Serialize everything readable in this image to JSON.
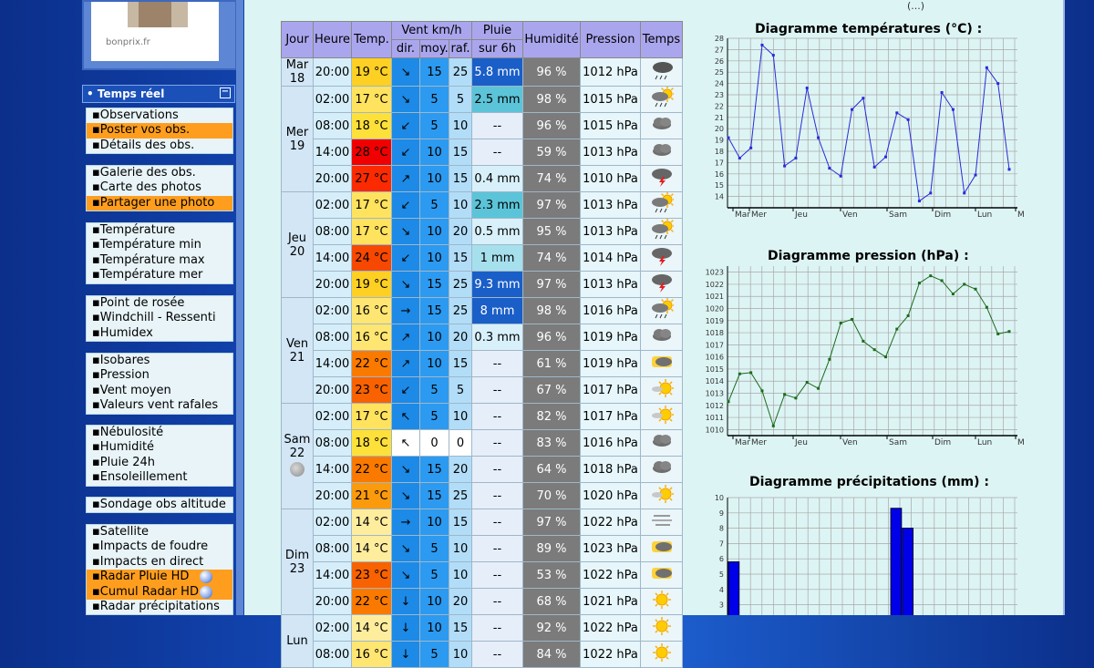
{
  "ad": {
    "label": "bonprix.fr"
  },
  "top_partial": "(...)",
  "menu": {
    "title": "• Temps réel",
    "groups": [
      [
        {
          "label": "Observations"
        },
        {
          "label": "Poster vos obs.",
          "hl": true
        },
        {
          "label": "Détails des obs."
        }
      ],
      [
        {
          "label": "Galerie des obs."
        },
        {
          "label": "Carte des photos"
        },
        {
          "label": "Partager une photo",
          "hl": true
        }
      ],
      [
        {
          "label": "Température"
        },
        {
          "label": "Température min"
        },
        {
          "label": "Température max"
        },
        {
          "label": "Température mer"
        }
      ],
      [
        {
          "label": "Point de rosée"
        },
        {
          "label": "Windchill - Ressenti"
        },
        {
          "label": "Humidex"
        }
      ],
      [
        {
          "label": "Isobares"
        },
        {
          "label": "Pression"
        },
        {
          "label": "Vent moyen"
        },
        {
          "label": "Valeurs vent rafales"
        }
      ],
      [
        {
          "label": "Nébulosité"
        },
        {
          "label": "Humidité"
        },
        {
          "label": "Pluie 24h"
        },
        {
          "label": "Ensoleillement"
        }
      ],
      [
        {
          "label": "Sondage obs altitude"
        }
      ],
      [
        {
          "label": "Satellite"
        },
        {
          "label": "Impacts de foudre"
        },
        {
          "label": "Impacts en direct"
        },
        {
          "label": "Radar Pluie HD",
          "hl": true,
          "ball": true
        },
        {
          "label": "Cumul Radar HD",
          "hl": true,
          "ball": true
        },
        {
          "label": "Radar précipitations"
        }
      ]
    ]
  },
  "table": {
    "headers": {
      "day": "Jour",
      "hour": "Heure",
      "temp": "Temp.",
      "wind": "Vent km/h",
      "dir": "dir.",
      "avg": "moy.",
      "gust": "raf.",
      "rain1": "Pluie",
      "rain2": "sur 6h",
      "hum": "Humidité",
      "press": "Pression",
      "weather": "Temps"
    },
    "days": [
      {
        "day": "Mar",
        "date": "18",
        "rows": [
          {
            "h": "20:00",
            "t": "19 °C",
            "tc": "#fdd023",
            "dir": "↘",
            "moy": "15",
            "raf": "25",
            "pl": "5.8 mm",
            "plc": "#1a5ec8",
            "hu": "96 %",
            "pr": "1012 hPa",
            "ic": "storm"
          }
        ]
      },
      {
        "day": "Mer",
        "date": "19",
        "rows": [
          {
            "h": "02:00",
            "t": "17 °C",
            "tc": "#ffe35e",
            "dir": "↘",
            "moy": "5",
            "raf": "5",
            "pl": "2.5 mm",
            "plc": "#5cc4d8",
            "hu": "98 %",
            "pr": "1015 hPa",
            "ic": "rainsun"
          },
          {
            "h": "08:00",
            "t": "18 °C",
            "tc": "#fde03a",
            "dir": "↙",
            "moy": "5",
            "raf": "10",
            "pl": "--",
            "hu": "96 %",
            "pr": "1015 hPa",
            "ic": "cloud"
          },
          {
            "h": "14:00",
            "t": "28 °C",
            "tc": "#f00000",
            "dir": "↙",
            "moy": "10",
            "raf": "15",
            "pl": "--",
            "hu": "59 %",
            "pr": "1013 hPa",
            "ic": "cloud"
          },
          {
            "h": "20:00",
            "t": "27 °C",
            "tc": "#fb2a00",
            "dir": "↗",
            "moy": "10",
            "raf": "15",
            "pl": "0.4 mm",
            "plc": "#d8f0fa",
            "hu": "74 %",
            "pr": "1010 hPa",
            "ic": "thunder"
          }
        ]
      },
      {
        "day": "Jeu",
        "date": "20",
        "rows": [
          {
            "h": "02:00",
            "t": "17 °C",
            "tc": "#ffe35e",
            "dir": "↙",
            "moy": "5",
            "raf": "10",
            "pl": "2.3 mm",
            "plc": "#5cc4d8",
            "hu": "97 %",
            "pr": "1013 hPa",
            "ic": "rainsun"
          },
          {
            "h": "08:00",
            "t": "17 °C",
            "tc": "#ffe35e",
            "dir": "↘",
            "moy": "10",
            "raf": "20",
            "pl": "0.5 mm",
            "plc": "#d8f0fa",
            "hu": "95 %",
            "pr": "1013 hPa",
            "ic": "rainsun"
          },
          {
            "h": "14:00",
            "t": "24 °C",
            "tc": "#f64800",
            "dir": "↙",
            "moy": "10",
            "raf": "15",
            "pl": "1 mm",
            "plc": "#a6e0ec",
            "hu": "74 %",
            "pr": "1014 hPa",
            "ic": "thunder"
          },
          {
            "h": "20:00",
            "t": "19 °C",
            "tc": "#fdd023",
            "dir": "↘",
            "moy": "15",
            "raf": "25",
            "pl": "9.3 mm",
            "plc": "#1a5ec8",
            "hu": "97 %",
            "pr": "1013 hPa",
            "ic": "thunder"
          }
        ]
      },
      {
        "day": "Ven",
        "date": "21",
        "rows": [
          {
            "h": "02:00",
            "t": "16 °C",
            "tc": "#ffe672",
            "dir": "→",
            "moy": "15",
            "raf": "25",
            "pl": "8 mm",
            "plc": "#1a5ec8",
            "hu": "98 %",
            "pr": "1016 hPa",
            "ic": "rainsun"
          },
          {
            "h": "08:00",
            "t": "16 °C",
            "tc": "#ffe672",
            "dir": "↗",
            "moy": "10",
            "raf": "20",
            "pl": "0.3 mm",
            "plc": "#d8f0fa",
            "hu": "96 %",
            "pr": "1019 hPa",
            "ic": "cloud"
          },
          {
            "h": "14:00",
            "t": "22 °C",
            "tc": "#fa7a00",
            "dir": "↗",
            "moy": "10",
            "raf": "15",
            "pl": "--",
            "hu": "61 %",
            "pr": "1019 hPa",
            "ic": "sunclouds"
          },
          {
            "h": "20:00",
            "t": "23 °C",
            "tc": "#f86200",
            "dir": "↙",
            "moy": "5",
            "raf": "5",
            "pl": "--",
            "hu": "67 %",
            "pr": "1017 hPa",
            "ic": "sunsmall"
          }
        ]
      },
      {
        "day": "Sam",
        "date": "22",
        "moon": true,
        "rows": [
          {
            "h": "02:00",
            "t": "17 °C",
            "tc": "#ffe35e",
            "dir": "↖",
            "moy": "5",
            "raf": "10",
            "pl": "--",
            "hu": "82 %",
            "pr": "1017 hPa",
            "ic": "sunsmall"
          },
          {
            "h": "08:00",
            "t": "18 °C",
            "tc": "#fde03a",
            "dir": "↖",
            "moy": "0",
            "raf": "0",
            "calm": true,
            "pl": "--",
            "hu": "83 %",
            "pr": "1016 hPa",
            "ic": "cloud"
          },
          {
            "h": "14:00",
            "t": "22 °C",
            "tc": "#fa7a00",
            "dir": "↘",
            "moy": "15",
            "raf": "20",
            "pl": "--",
            "hu": "64 %",
            "pr": "1018 hPa",
            "ic": "cloud"
          },
          {
            "h": "20:00",
            "t": "21 °C",
            "tc": "#fb9a0c",
            "dir": "↘",
            "moy": "15",
            "raf": "25",
            "pl": "--",
            "hu": "70 %",
            "pr": "1020 hPa",
            "ic": "sunsmall"
          }
        ]
      },
      {
        "day": "Dim",
        "date": "23",
        "rows": [
          {
            "h": "02:00",
            "t": "14 °C",
            "tc": "#ffed9e",
            "dir": "→",
            "moy": "10",
            "raf": "15",
            "pl": "--",
            "hu": "97 %",
            "pr": "1022 hPa",
            "ic": "fog"
          },
          {
            "h": "08:00",
            "t": "14 °C",
            "tc": "#ffed9e",
            "dir": "↘",
            "moy": "5",
            "raf": "10",
            "pl": "--",
            "hu": "89 %",
            "pr": "1023 hPa",
            "ic": "sunclouds"
          },
          {
            "h": "14:00",
            "t": "23 °C",
            "tc": "#f86200",
            "dir": "↘",
            "moy": "5",
            "raf": "10",
            "pl": "--",
            "hu": "53 %",
            "pr": "1022 hPa",
            "ic": "sunclouds"
          },
          {
            "h": "20:00",
            "t": "22 °C",
            "tc": "#fa7a00",
            "dir": "↓",
            "moy": "10",
            "raf": "20",
            "pl": "--",
            "hu": "68 %",
            "pr": "1021 hPa",
            "ic": "sun"
          }
        ]
      },
      {
        "day": "Lun",
        "date": "",
        "rows": [
          {
            "h": "02:00",
            "t": "14 °C",
            "tc": "#ffed9e",
            "dir": "↓",
            "moy": "10",
            "raf": "15",
            "pl": "--",
            "hu": "92 %",
            "pr": "1022 hPa",
            "ic": "sun"
          },
          {
            "h": "08:00",
            "t": "16 °C",
            "tc": "#ffe672",
            "dir": "↓",
            "moy": "5",
            "raf": "10",
            "pl": "--",
            "hu": "84 %",
            "pr": "1022 hPa",
            "ic": "sun"
          }
        ]
      }
    ]
  },
  "colors": {
    "temp_line": "#2a2ad8",
    "press_line": "#1c6a1c",
    "bar_fill": "#0000e8"
  },
  "charts": {
    "temperature": {
      "title": "Diagramme températures (°C) :",
      "type": "line",
      "ylim": [
        13,
        28
      ],
      "yticks": [
        "28",
        "27",
        "26",
        "25",
        "24",
        "23",
        "22",
        "21",
        "20",
        "19",
        "18",
        "17",
        "16",
        "15",
        "14"
      ],
      "xticks": [
        "Mar",
        "Mer",
        "Jeu",
        "Ven",
        "Sam",
        "Dim",
        "Lun",
        "M"
      ],
      "values": [
        19.2,
        17.4,
        18.3,
        27.4,
        26.5,
        16.7,
        17.4,
        23.6,
        19.2,
        16.5,
        15.8,
        21.7,
        22.7,
        16.6,
        17.5,
        21.4,
        20.8,
        13.6,
        14.3,
        23.2,
        21.7,
        14.3,
        15.9,
        25.4,
        24.0,
        16.4
      ]
    },
    "pressure": {
      "title": "Diagramme pression (hPa) :",
      "type": "line",
      "ylim": [
        1009.5,
        1023.5
      ],
      "yticks": [
        "1023",
        "1022",
        "1021",
        "1020",
        "1019",
        "1018",
        "1017",
        "1016",
        "1015",
        "1014",
        "1013",
        "1012",
        "1011",
        "1010"
      ],
      "xticks": [
        "Mar",
        "Mer",
        "Jeu",
        "Ven",
        "Sam",
        "Dim",
        "Lun",
        "M"
      ],
      "values": [
        1012.3,
        1014.6,
        1014.7,
        1013.2,
        1010.3,
        1012.9,
        1012.6,
        1013.9,
        1013.4,
        1015.8,
        1018.8,
        1019.1,
        1017.3,
        1016.6,
        1016.0,
        1018.3,
        1019.4,
        1022.1,
        1022.7,
        1022.3,
        1021.2,
        1022.0,
        1021.6,
        1020.1,
        1017.9,
        1018.1
      ]
    },
    "rain": {
      "title": "Diagramme précipitations (mm) :",
      "type": "bar",
      "ylim": [
        0,
        10
      ],
      "yticks": [
        "10",
        "9",
        "8",
        "7",
        "6",
        "5",
        "4",
        "3"
      ],
      "bars": [
        {
          "slot": 1,
          "value": 5.8
        },
        {
          "slot": 15,
          "value": 9.3
        },
        {
          "slot": 16,
          "value": 8.0
        }
      ]
    }
  }
}
